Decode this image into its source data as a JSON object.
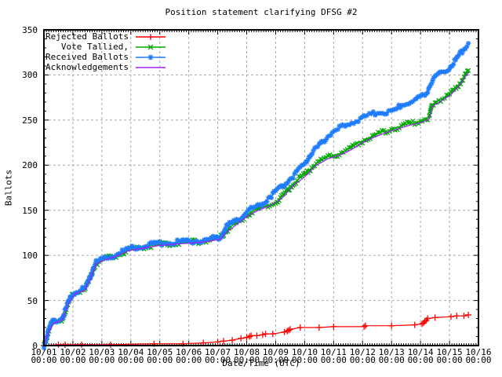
{
  "title": "Position statement clarifying DFSG #2",
  "axes": {
    "xlabel": "Date/Time (UTC)",
    "ylabel": "Ballots"
  },
  "colors": {
    "background": "#ffffff",
    "border": "#000000",
    "grid": "#a8a8a8",
    "text": "#000000"
  },
  "chart_data": {
    "type": "line",
    "title": "Position statement clarifying DFSG #2",
    "xlabel": "Date/Time (UTC)",
    "ylabel": "Ballots",
    "x_unit": "days since 10/01 00:00 UTC",
    "xlim": [
      0,
      15
    ],
    "ylim": [
      0,
      350
    ],
    "grid": true,
    "legend_position": "top-left-inside",
    "y_ticks": [
      0,
      50,
      100,
      150,
      200,
      250,
      300,
      350
    ],
    "x_tick_labels": [
      {
        "date": "10/01",
        "time": "00:00"
      },
      {
        "date": "10/02",
        "time": "00:00"
      },
      {
        "date": "10/03",
        "time": "00:00"
      },
      {
        "date": "10/04",
        "time": "00:00"
      },
      {
        "date": "10/05",
        "time": "00:00"
      },
      {
        "date": "10/06",
        "time": "00:00"
      },
      {
        "date": "10/07",
        "time": "00:00"
      },
      {
        "date": "10/08",
        "time": "00:00"
      },
      {
        "date": "10/09",
        "time": "00:00"
      },
      {
        "date": "10/10",
        "time": "00:00"
      },
      {
        "date": "10/11",
        "time": "00:00"
      },
      {
        "date": "10/12",
        "time": "00:00"
      },
      {
        "date": "10/13",
        "time": "00:00"
      },
      {
        "date": "10/14",
        "time": "00:00"
      },
      {
        "date": "10/15",
        "time": "00:00"
      },
      {
        "date": "10/16",
        "time": "00:00"
      }
    ],
    "series": [
      {
        "label": "Rejected Ballots",
        "color": "#ff0000",
        "marker": "plus",
        "dense": false,
        "points": [
          [
            0,
            0
          ],
          [
            0.5,
            1
          ],
          [
            0.73,
            1
          ],
          [
            1.3,
            1
          ],
          [
            2.3,
            1
          ],
          [
            3.8,
            2
          ],
          [
            4.8,
            2
          ],
          [
            5.5,
            3
          ],
          [
            6.0,
            4
          ],
          [
            6.2,
            5
          ],
          [
            6.5,
            6
          ],
          [
            6.8,
            8
          ],
          [
            7.0,
            9
          ],
          [
            7.1,
            10
          ],
          [
            7.15,
            11
          ],
          [
            7.35,
            11
          ],
          [
            7.55,
            12
          ],
          [
            7.65,
            13
          ],
          [
            7.9,
            13
          ],
          [
            8.3,
            15
          ],
          [
            8.4,
            16
          ],
          [
            8.45,
            17
          ],
          [
            8.5,
            18
          ],
          [
            8.85,
            20
          ],
          [
            9.5,
            20
          ],
          [
            10.0,
            21
          ],
          [
            11.05,
            21
          ],
          [
            11.1,
            22
          ],
          [
            12.0,
            22
          ],
          [
            12.8,
            23
          ],
          [
            13.05,
            24
          ],
          [
            13.1,
            25
          ],
          [
            13.15,
            27
          ],
          [
            13.2,
            28
          ],
          [
            13.25,
            30
          ],
          [
            13.5,
            31
          ],
          [
            14.05,
            32
          ],
          [
            14.25,
            33
          ],
          [
            14.5,
            33
          ],
          [
            14.65,
            34
          ]
        ]
      },
      {
        "label": "Vote Tallied,",
        "color": "#00a800",
        "marker": "cross",
        "dense": true,
        "points": [
          [
            0,
            0
          ],
          [
            0.08,
            7
          ],
          [
            0.15,
            15
          ],
          [
            0.25,
            23
          ],
          [
            0.35,
            26
          ],
          [
            0.5,
            27
          ],
          [
            0.62,
            29
          ],
          [
            0.75,
            39
          ],
          [
            0.9,
            51
          ],
          [
            1.0,
            56
          ],
          [
            1.1,
            59
          ],
          [
            1.25,
            61
          ],
          [
            1.4,
            62
          ],
          [
            1.5,
            67
          ],
          [
            1.6,
            75
          ],
          [
            1.7,
            85
          ],
          [
            1.8,
            91
          ],
          [
            1.95,
            94
          ],
          [
            2.1,
            96
          ],
          [
            2.3,
            98
          ],
          [
            2.5,
            100
          ],
          [
            2.7,
            103
          ],
          [
            2.9,
            106
          ],
          [
            3.1,
            108
          ],
          [
            3.4,
            109
          ],
          [
            3.7,
            111
          ],
          [
            4.0,
            112
          ],
          [
            4.4,
            113
          ],
          [
            4.8,
            114
          ],
          [
            5.2,
            115
          ],
          [
            5.6,
            116
          ],
          [
            5.9,
            118
          ],
          [
            6.1,
            120
          ],
          [
            6.25,
            126
          ],
          [
            6.4,
            131
          ],
          [
            6.6,
            135
          ],
          [
            6.8,
            139
          ],
          [
            7.0,
            145
          ],
          [
            7.2,
            149
          ],
          [
            7.4,
            151
          ],
          [
            7.6,
            154
          ],
          [
            7.8,
            156
          ],
          [
            8.0,
            158
          ],
          [
            8.2,
            165
          ],
          [
            8.4,
            172
          ],
          [
            8.6,
            179
          ],
          [
            8.8,
            185
          ],
          [
            9.0,
            189
          ],
          [
            9.2,
            196
          ],
          [
            9.4,
            202
          ],
          [
            9.6,
            206
          ],
          [
            9.8,
            209
          ],
          [
            10.0,
            211
          ],
          [
            10.2,
            213
          ],
          [
            10.4,
            216
          ],
          [
            10.6,
            219
          ],
          [
            10.8,
            224
          ],
          [
            11.0,
            227
          ],
          [
            11.2,
            230
          ],
          [
            11.4,
            233
          ],
          [
            11.6,
            236
          ],
          [
            11.8,
            238
          ],
          [
            12.0,
            240
          ],
          [
            12.2,
            242
          ],
          [
            12.4,
            244
          ],
          [
            12.6,
            246
          ],
          [
            12.8,
            247
          ],
          [
            13.0,
            249
          ],
          [
            13.2,
            252
          ],
          [
            13.3,
            253
          ],
          [
            13.4,
            267
          ],
          [
            13.55,
            271
          ],
          [
            13.7,
            273
          ],
          [
            13.9,
            276
          ],
          [
            14.05,
            280
          ],
          [
            14.2,
            285
          ],
          [
            14.35,
            291
          ],
          [
            14.5,
            297
          ],
          [
            14.65,
            305
          ]
        ]
      },
      {
        "label": "Received Ballots",
        "color": "#1f7cff",
        "marker": "asterisk",
        "dense": true,
        "points": [
          [
            0,
            0
          ],
          [
            0.08,
            8
          ],
          [
            0.15,
            16
          ],
          [
            0.25,
            24
          ],
          [
            0.35,
            27
          ],
          [
            0.5,
            28
          ],
          [
            0.62,
            30
          ],
          [
            0.75,
            40
          ],
          [
            0.9,
            52
          ],
          [
            1.0,
            57
          ],
          [
            1.1,
            60
          ],
          [
            1.25,
            62
          ],
          [
            1.4,
            63
          ],
          [
            1.5,
            68
          ],
          [
            1.6,
            76
          ],
          [
            1.7,
            86
          ],
          [
            1.8,
            92
          ],
          [
            1.95,
            95
          ],
          [
            2.1,
            97
          ],
          [
            2.3,
            99
          ],
          [
            2.5,
            101
          ],
          [
            2.7,
            104
          ],
          [
            2.9,
            107
          ],
          [
            3.1,
            109
          ],
          [
            3.4,
            110
          ],
          [
            3.7,
            112
          ],
          [
            4.0,
            113
          ],
          [
            4.4,
            114
          ],
          [
            4.8,
            115
          ],
          [
            5.2,
            116
          ],
          [
            5.6,
            117
          ],
          [
            5.9,
            119
          ],
          [
            6.1,
            121
          ],
          [
            6.2,
            127
          ],
          [
            6.3,
            132
          ],
          [
            6.45,
            135
          ],
          [
            6.6,
            138
          ],
          [
            6.75,
            141
          ],
          [
            6.9,
            145
          ],
          [
            7.0,
            149
          ],
          [
            7.15,
            152
          ],
          [
            7.3,
            153
          ],
          [
            7.45,
            155
          ],
          [
            7.6,
            159
          ],
          [
            7.75,
            164
          ],
          [
            7.9,
            167
          ],
          [
            8.0,
            170
          ],
          [
            8.15,
            175
          ],
          [
            8.3,
            179
          ],
          [
            8.45,
            184
          ],
          [
            8.6,
            188
          ],
          [
            8.75,
            193
          ],
          [
            8.9,
            198
          ],
          [
            9.0,
            202
          ],
          [
            9.15,
            210
          ],
          [
            9.3,
            216
          ],
          [
            9.5,
            221
          ],
          [
            9.65,
            227
          ],
          [
            9.8,
            232
          ],
          [
            9.95,
            236
          ],
          [
            10.1,
            238
          ],
          [
            10.25,
            242
          ],
          [
            10.4,
            245
          ],
          [
            10.55,
            247
          ],
          [
            10.7,
            248
          ],
          [
            10.85,
            250
          ],
          [
            11.0,
            252
          ],
          [
            11.15,
            255
          ],
          [
            11.3,
            257
          ],
          [
            11.5,
            258
          ],
          [
            11.7,
            258
          ],
          [
            11.9,
            259
          ],
          [
            12.1,
            260
          ],
          [
            12.25,
            264
          ],
          [
            12.4,
            268
          ],
          [
            12.6,
            270
          ],
          [
            12.8,
            271
          ],
          [
            12.95,
            274
          ],
          [
            13.1,
            278
          ],
          [
            13.25,
            283
          ],
          [
            13.35,
            290
          ],
          [
            13.45,
            295
          ],
          [
            13.55,
            299
          ],
          [
            13.65,
            302
          ],
          [
            13.8,
            304
          ],
          [
            13.95,
            306
          ],
          [
            14.1,
            312
          ],
          [
            14.25,
            318
          ],
          [
            14.4,
            325
          ],
          [
            14.55,
            331
          ],
          [
            14.65,
            335
          ]
        ]
      },
      {
        "label": "Acknowledgements",
        "color": "#a020f0",
        "marker": "none",
        "dense": false,
        "points": [
          [
            0,
            0
          ],
          [
            0.15,
            14
          ],
          [
            0.35,
            25
          ],
          [
            0.62,
            28
          ],
          [
            0.9,
            50
          ],
          [
            1.1,
            58
          ],
          [
            1.4,
            61
          ],
          [
            1.6,
            74
          ],
          [
            1.8,
            90
          ],
          [
            2.1,
            95
          ],
          [
            2.5,
            99
          ],
          [
            2.9,
            105
          ],
          [
            3.4,
            108
          ],
          [
            4.0,
            111
          ],
          [
            4.8,
            113
          ],
          [
            5.6,
            115
          ],
          [
            6.1,
            118
          ],
          [
            6.25,
            124
          ],
          [
            6.6,
            133
          ],
          [
            7.0,
            143
          ],
          [
            7.4,
            150
          ],
          [
            7.8,
            155
          ],
          [
            8.2,
            163
          ],
          [
            8.6,
            177
          ],
          [
            9.0,
            187
          ],
          [
            9.4,
            200
          ],
          [
            9.8,
            207
          ],
          [
            10.2,
            211
          ],
          [
            10.6,
            217
          ],
          [
            11.0,
            225
          ],
          [
            11.4,
            231
          ],
          [
            11.8,
            236
          ],
          [
            12.2,
            240
          ],
          [
            12.6,
            244
          ],
          [
            13.0,
            247
          ],
          [
            13.3,
            251
          ],
          [
            13.4,
            265
          ],
          [
            13.7,
            271
          ],
          [
            14.05,
            278
          ],
          [
            14.35,
            289
          ],
          [
            14.65,
            303
          ]
        ]
      }
    ]
  }
}
